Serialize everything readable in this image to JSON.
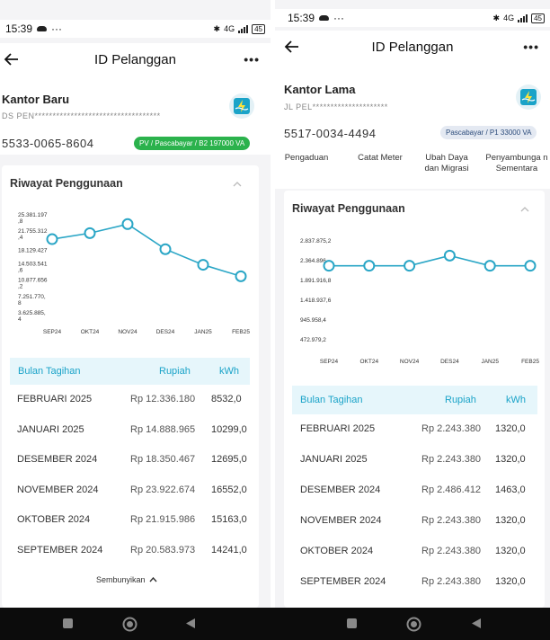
{
  "left": {
    "status": {
      "time": "15:39",
      "more": "···",
      "network": "4G",
      "battery": "45"
    },
    "header": {
      "title": "ID Pelanggan",
      "more": "•••"
    },
    "customer": {
      "name": "Kantor Baru",
      "address": "DS PEN***********************************",
      "id": "5533-0065-8604",
      "badge": "PV / Pascabayar / B2 197000 VA"
    },
    "usage": {
      "title": "Riwayat Penggunaan",
      "table_header": {
        "month": "Bulan Tagihan",
        "rupiah": "Rupiah",
        "kwh": "kWh"
      },
      "rows": [
        {
          "month": "FEBRUARI 2025",
          "rupiah": "Rp 12.336.180",
          "kwh": "8532,0"
        },
        {
          "month": "JANUARI 2025",
          "rupiah": "Rp 14.888.965",
          "kwh": "10299,0"
        },
        {
          "month": "DESEMBER 2024",
          "rupiah": "Rp 18.350.467",
          "kwh": "12695,0"
        },
        {
          "month": "NOVEMBER 2024",
          "rupiah": "Rp 23.922.674",
          "kwh": "16552,0"
        },
        {
          "month": "OKTOBER 2024",
          "rupiah": "Rp 21.915.986",
          "kwh": "15163,0"
        },
        {
          "month": "SEPTEMBER 2024",
          "rupiah": "Rp 20.583.973",
          "kwh": "14241,0"
        }
      ],
      "hide_label": "Sembunyikan"
    }
  },
  "right": {
    "status": {
      "time": "15:39",
      "more": "···",
      "network": "4G",
      "battery": "45"
    },
    "header": {
      "title": "ID Pelanggan",
      "more": "•••"
    },
    "customer": {
      "name": "Kantor Lama",
      "address": "JL PEL*********************",
      "id": "5517-0034-4494",
      "badge": "Pascabayar / P1 33000 VA"
    },
    "services": [
      "Pengaduan",
      "Catat Meter",
      "Ubah Daya dan Migrasi",
      "Penyambunga n Sementara"
    ],
    "usage": {
      "title": "Riwayat Penggunaan",
      "table_header": {
        "month": "Bulan Tagihan",
        "rupiah": "Rupiah",
        "kwh": "kWh"
      },
      "rows": [
        {
          "month": "FEBRUARI 2025",
          "rupiah": "Rp 2.243.380",
          "kwh": "1320,0"
        },
        {
          "month": "JANUARI 2025",
          "rupiah": "Rp 2.243.380",
          "kwh": "1320,0"
        },
        {
          "month": "DESEMBER 2024",
          "rupiah": "Rp 2.486.412",
          "kwh": "1463,0"
        },
        {
          "month": "NOVEMBER 2024",
          "rupiah": "Rp 2.243.380",
          "kwh": "1320,0"
        },
        {
          "month": "OKTOBER 2024",
          "rupiah": "Rp 2.243.380",
          "kwh": "1320,0"
        },
        {
          "month": "SEPTEMBER 2024",
          "rupiah": "Rp 2.243.380",
          "kwh": "1320,0"
        }
      ]
    }
  },
  "chart_data": [
    {
      "type": "line",
      "categories": [
        "SEP24",
        "OKT24",
        "NOV24",
        "DES24",
        "JAN25",
        "FEB25"
      ],
      "y_tick_labels": [
        "3.625.885,4",
        "7.251.770,8",
        "10.877.656,2",
        "14.503.541,6",
        "18.129.427",
        "21.755.312,4",
        "25.381.197,8"
      ],
      "y_ticks": [
        3625885.4,
        7251770.8,
        10877656.2,
        14503541.6,
        18129427,
        21755312.4,
        25381197.8
      ],
      "values": [
        20583973,
        21915986,
        23922674,
        18350467,
        14888965,
        12336180
      ],
      "ylim": [
        3625885.4,
        25381197.8
      ],
      "grid": false,
      "color": "#2aa6c6"
    },
    {
      "type": "line",
      "categories": [
        "SEP24",
        "OKT24",
        "NOV24",
        "DES24",
        "JAN25",
        "FEB25"
      ],
      "y_tick_labels": [
        "472.979,2",
        "945.958,4",
        "1.418.937,6",
        "1.891.916,8",
        "2.364.896",
        "2.837.875,2"
      ],
      "y_ticks": [
        472979.2,
        945958.4,
        1418937.6,
        1891916.8,
        2364896,
        2837875.2
      ],
      "values": [
        2243380,
        2243380,
        2243380,
        2486412,
        2243380,
        2243380
      ],
      "ylim": [
        472979.2,
        2837875.2
      ],
      "grid": false,
      "color": "#2aa6c6"
    }
  ],
  "nav": {
    "recent": "recent-apps",
    "home": "home",
    "back": "back"
  }
}
